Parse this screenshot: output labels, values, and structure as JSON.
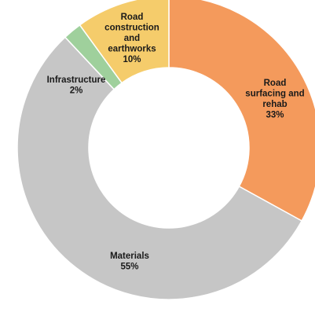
{
  "chart_data": {
    "type": "pie",
    "donut": true,
    "title": "",
    "slices": [
      {
        "label": "Road surfacing and rehab",
        "value": 33,
        "value_label": "33%",
        "label_lines": [
          "Road",
          "surfacing and",
          "rehab"
        ],
        "color": "#f49a5c"
      },
      {
        "label": "Materials",
        "value": 55,
        "value_label": "55%",
        "label_lines": [
          "Materials"
        ],
        "color": "#c6c6c6"
      },
      {
        "label": "Infrastructure",
        "value": 2,
        "value_label": "2%",
        "label_lines": [
          "Infrastructure"
        ],
        "color": "#9fd09c"
      },
      {
        "label": "Road construction and earthworks",
        "value": 10,
        "value_label": "10%",
        "label_lines": [
          "Road",
          "construction",
          "and",
          "earthworks"
        ],
        "color": "#f5cc6b"
      }
    ]
  }
}
